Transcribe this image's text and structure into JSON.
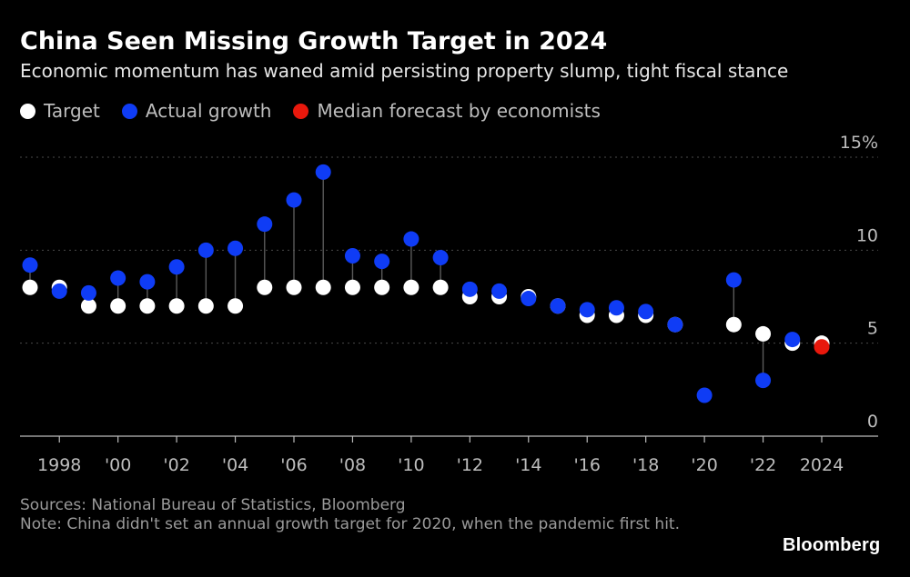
{
  "title": "China Seen Missing Growth Target in 2024",
  "subtitle": "Economic momentum has waned amid persisting property slump, tight fiscal stance",
  "legend": [
    {
      "label": "Target",
      "color": "#ffffff"
    },
    {
      "label": "Actual growth",
      "color": "#0f3cf5"
    },
    {
      "label": "Median forecast by economists",
      "color": "#e8180c"
    }
  ],
  "footer": {
    "sources": "Sources: National Bureau of Statistics, Bloomberg",
    "note": "Note: China didn't set an annual growth target for 2020, when the pandemic first hit."
  },
  "brand": "Bloomberg",
  "chart_data": {
    "type": "scatter",
    "x": [
      1997,
      1998,
      1999,
      2000,
      2001,
      2002,
      2003,
      2004,
      2005,
      2006,
      2007,
      2008,
      2009,
      2010,
      2011,
      2012,
      2013,
      2014,
      2015,
      2016,
      2017,
      2018,
      2019,
      2020,
      2021,
      2022,
      2023,
      2024
    ],
    "series": [
      {
        "name": "Target",
        "color": "#ffffff",
        "values": [
          8,
          8,
          7,
          7,
          7,
          7,
          7,
          7,
          8,
          8,
          8,
          8,
          8,
          8,
          8,
          7.5,
          7.5,
          7.5,
          7,
          6.5,
          6.5,
          6.5,
          6,
          null,
          6,
          5.5,
          5,
          5
        ]
      },
      {
        "name": "Actual growth",
        "color": "#0f3cf5",
        "values": [
          9.2,
          7.8,
          7.7,
          8.5,
          8.3,
          9.1,
          10.0,
          10.1,
          11.4,
          12.7,
          14.2,
          9.7,
          9.4,
          10.6,
          9.6,
          7.9,
          7.8,
          7.4,
          7.0,
          6.8,
          6.9,
          6.7,
          6.0,
          2.2,
          8.4,
          3.0,
          5.2,
          null
        ]
      },
      {
        "name": "Median forecast by economists",
        "color": "#e8180c",
        "values": [
          null,
          null,
          null,
          null,
          null,
          null,
          null,
          null,
          null,
          null,
          null,
          null,
          null,
          null,
          null,
          null,
          null,
          null,
          null,
          null,
          null,
          null,
          null,
          null,
          null,
          null,
          null,
          4.8
        ]
      }
    ],
    "x_tick_values": [
      1998,
      2000,
      2002,
      2004,
      2006,
      2008,
      2010,
      2012,
      2014,
      2016,
      2018,
      2020,
      2022,
      2024
    ],
    "x_tick_labels": [
      "1998",
      "'00",
      "'02",
      "'04",
      "'06",
      "'08",
      "'10",
      "'12",
      "'14",
      "'16",
      "'18",
      "'20",
      "'22",
      "2024"
    ],
    "y_ticks": [
      0,
      5,
      10,
      15
    ],
    "y_tick_labels": [
      "0",
      "5",
      "10",
      "15%"
    ],
    "ylim": [
      0,
      15
    ],
    "xlim": [
      1997,
      2024
    ],
    "grid": true,
    "legend_position": "top-left",
    "connector_color": "#5a5a5a",
    "grid_color": "#4a4a4a",
    "axis_color": "#bbbbbb",
    "tick_label_color": "#bdbdbd"
  }
}
